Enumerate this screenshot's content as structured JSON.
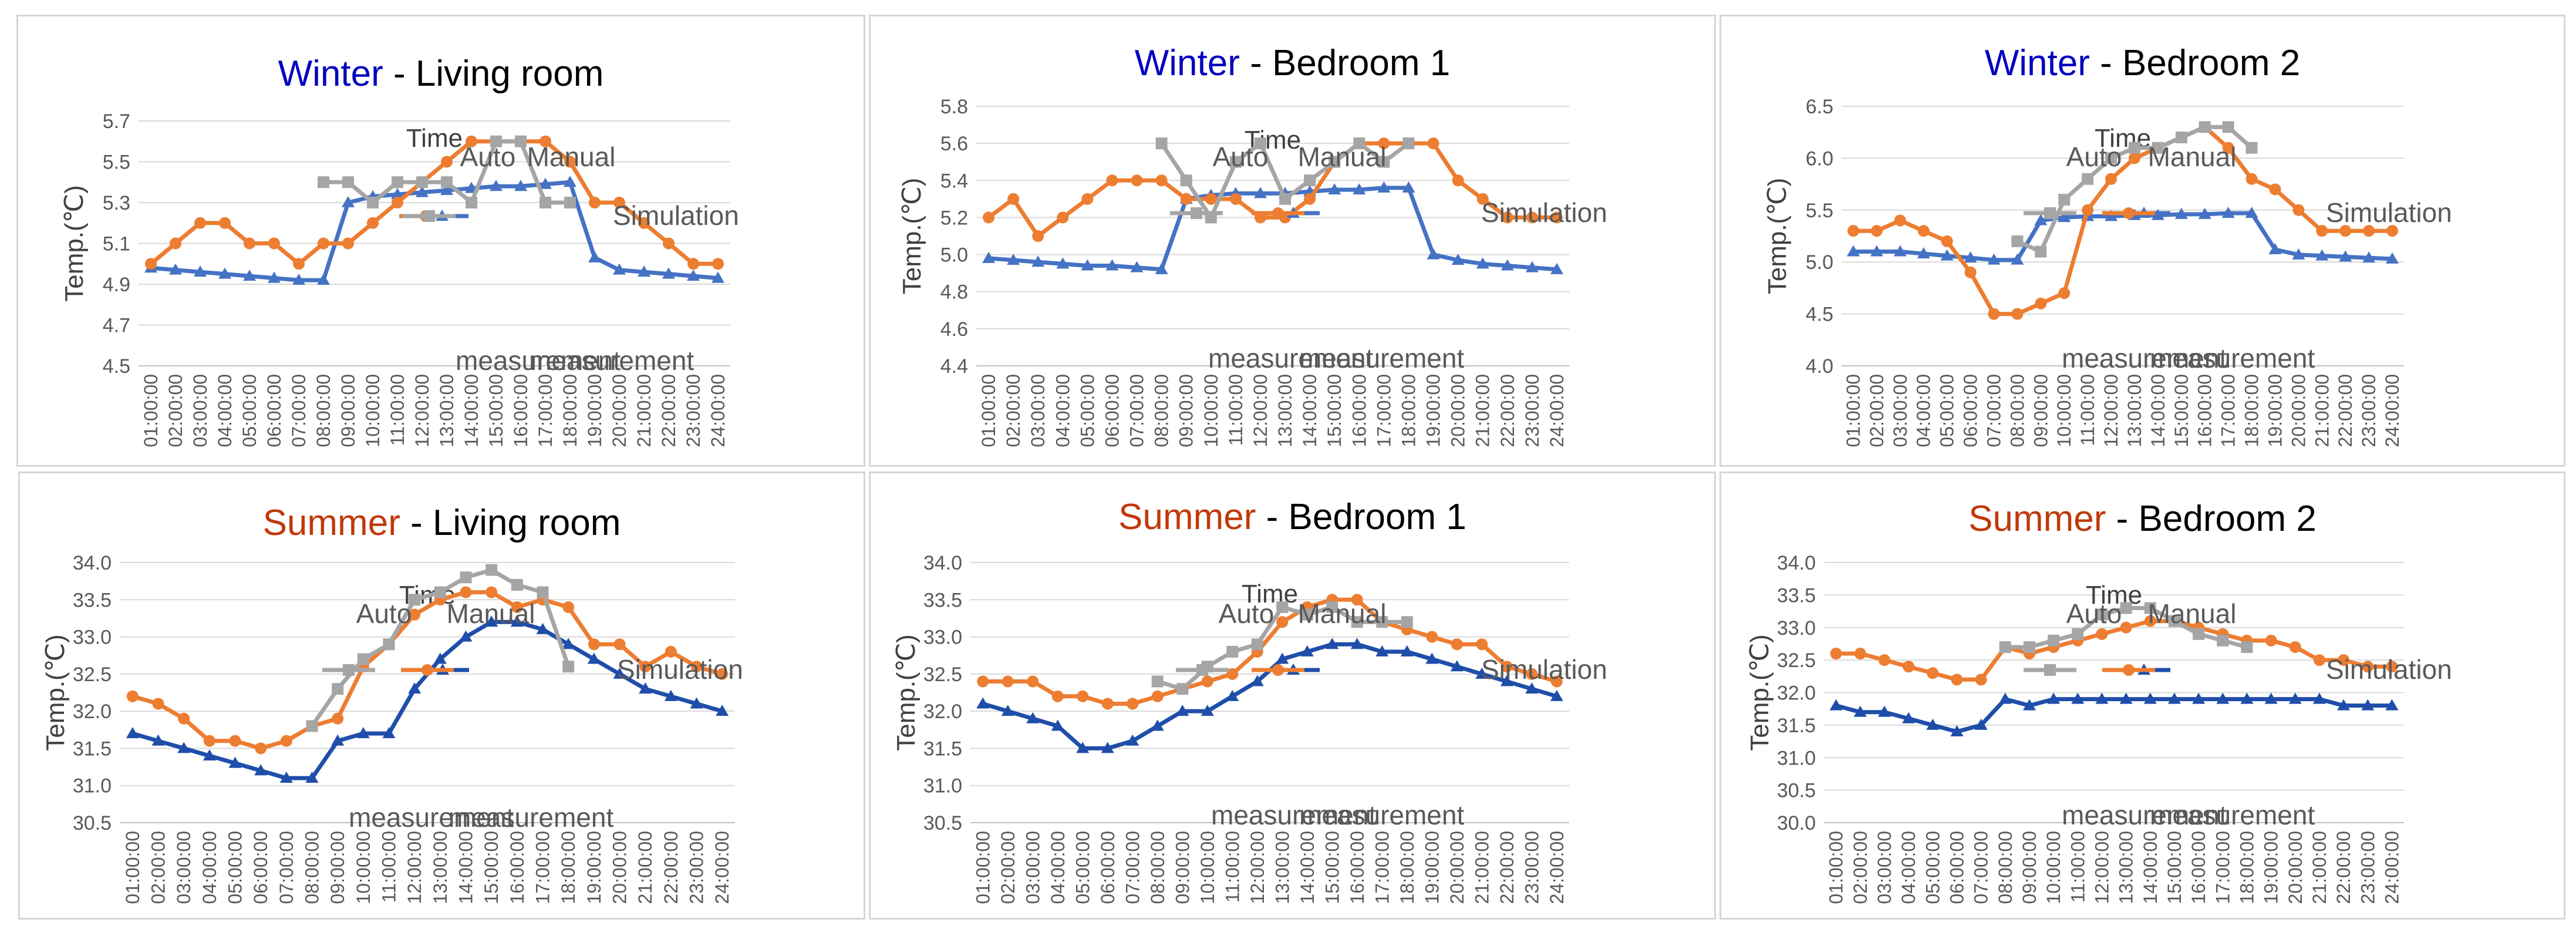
{
  "colors": {
    "simulation_light": "#4472C4",
    "simulation_dark": "#1F4EAA",
    "auto": "#ED7D31",
    "manual": "#A5A5A5",
    "winter": "#0000BF",
    "summer": "#C0390B"
  },
  "common": {
    "separator": " - ",
    "ylabel": "Temp.(℃)",
    "xlabel": "Time",
    "legend": {
      "simulation": "Simulation",
      "auto_line1": "Auto",
      "auto_line2": "measurement",
      "manual_line1": "Manual",
      "manual_line2": "measurement"
    },
    "times": [
      "01:00:00",
      "02:00:00",
      "03:00:00",
      "04:00:00",
      "05:00:00",
      "06:00:00",
      "07:00:00",
      "08:00:00",
      "09:00:00",
      "10:00:00",
      "11:00:00",
      "12:00:00",
      "13:00:00",
      "14:00:00",
      "15:00:00",
      "16:00:00",
      "17:00:00",
      "18:00:00",
      "19:00:00",
      "20:00:00",
      "21:00:00",
      "22:00:00",
      "23:00:00",
      "24:00:00"
    ]
  },
  "chart_data": [
    {
      "type": "line",
      "season": "Winter",
      "room": "Living room",
      "title": "Winter - Living room",
      "ylim": [
        4.5,
        5.7
      ],
      "yticks": [
        "4.5",
        "4.7",
        "4.9",
        "5.1",
        "5.3",
        "5.5",
        "5.7"
      ],
      "series": [
        {
          "name": "Simulation",
          "values": [
            4.98,
            4.97,
            4.96,
            4.95,
            4.94,
            4.93,
            4.92,
            4.92,
            5.3,
            5.33,
            5.34,
            5.35,
            5.36,
            5.37,
            5.38,
            5.38,
            5.39,
            5.4,
            5.03,
            4.97,
            4.96,
            4.95,
            4.94,
            4.93
          ]
        },
        {
          "name": "Auto measurement",
          "values": [
            5.0,
            5.1,
            5.2,
            5.2,
            5.1,
            5.1,
            5.0,
            5.1,
            5.1,
            5.2,
            5.3,
            5.4,
            5.5,
            5.6,
            5.6,
            5.6,
            5.6,
            5.5,
            5.3,
            5.3,
            5.2,
            5.1,
            5.0,
            5.0
          ]
        },
        {
          "name": "Manual measurement",
          "values": [
            null,
            null,
            null,
            null,
            null,
            null,
            null,
            5.4,
            5.4,
            5.3,
            5.4,
            5.4,
            5.4,
            5.3,
            5.6,
            5.6,
            5.3,
            5.3,
            null,
            null,
            null,
            null,
            null,
            null
          ]
        }
      ]
    },
    {
      "type": "line",
      "season": "Winter",
      "room": "Bedroom 1",
      "title": "Winter - Bedroom 1",
      "ylim": [
        4.4,
        5.8
      ],
      "yticks": [
        "4.4",
        "4.6",
        "4.8",
        "5.0",
        "5.2",
        "5.4",
        "5.6",
        "5.8"
      ],
      "series": [
        {
          "name": "Simulation",
          "values": [
            4.98,
            4.97,
            4.96,
            4.95,
            4.94,
            4.94,
            4.93,
            4.92,
            5.3,
            5.32,
            5.33,
            5.33,
            5.33,
            5.34,
            5.35,
            5.35,
            5.36,
            5.36,
            5.0,
            4.97,
            4.95,
            4.94,
            4.93,
            4.92
          ]
        },
        {
          "name": "Auto measurement",
          "values": [
            5.2,
            5.3,
            5.1,
            5.2,
            5.3,
            5.4,
            5.4,
            5.4,
            5.3,
            5.3,
            5.3,
            5.2,
            5.2,
            5.3,
            5.5,
            5.6,
            5.6,
            5.6,
            5.6,
            5.4,
            5.3,
            5.2,
            5.2,
            5.2
          ]
        },
        {
          "name": "Manual measurement",
          "values": [
            null,
            null,
            null,
            null,
            null,
            null,
            null,
            5.6,
            5.4,
            5.2,
            5.5,
            5.6,
            5.3,
            5.4,
            5.5,
            5.6,
            5.5,
            5.6,
            null,
            null,
            null,
            null,
            null,
            null
          ]
        }
      ]
    },
    {
      "type": "line",
      "season": "Winter",
      "room": "Bedroom 2",
      "title": "Winter - Bedroom 2",
      "ylim": [
        4.0,
        6.5
      ],
      "yticks": [
        "4.0",
        "4.5",
        "5.0",
        "5.5",
        "6.0",
        "6.5"
      ],
      "series": [
        {
          "name": "Simulation",
          "values": [
            5.1,
            5.1,
            5.1,
            5.08,
            5.06,
            5.04,
            5.02,
            5.02,
            5.4,
            5.43,
            5.44,
            5.44,
            5.45,
            5.45,
            5.46,
            5.46,
            5.47,
            5.47,
            5.12,
            5.07,
            5.06,
            5.05,
            5.04,
            5.03
          ]
        },
        {
          "name": "Auto measurement",
          "values": [
            5.3,
            5.3,
            5.4,
            5.3,
            5.2,
            4.9,
            4.5,
            4.5,
            4.6,
            4.7,
            5.5,
            5.8,
            6.0,
            6.1,
            6.2,
            6.3,
            6.1,
            5.8,
            5.7,
            5.5,
            5.3,
            5.3,
            5.3,
            5.3
          ]
        },
        {
          "name": "Manual measurement",
          "values": [
            null,
            null,
            null,
            null,
            null,
            null,
            null,
            5.2,
            5.1,
            5.6,
            5.8,
            6.0,
            6.1,
            6.1,
            6.2,
            6.3,
            6.3,
            6.1,
            null,
            null,
            null,
            null,
            null,
            null
          ]
        }
      ]
    },
    {
      "type": "line",
      "season": "Summer",
      "room": "Living room",
      "title": "Summer - Living room",
      "ylim": [
        30.5,
        34.0
      ],
      "yticks": [
        "30.5",
        "31.0",
        "31.5",
        "32.0",
        "32.5",
        "33.0",
        "33.5",
        "34.0"
      ],
      "series": [
        {
          "name": "Simulation",
          "values": [
            31.7,
            31.6,
            31.5,
            31.4,
            31.3,
            31.2,
            31.1,
            31.1,
            31.6,
            31.7,
            31.7,
            32.3,
            32.7,
            33.0,
            33.2,
            33.2,
            33.1,
            32.9,
            32.7,
            32.5,
            32.3,
            32.2,
            32.1,
            32.0
          ]
        },
        {
          "name": "Auto measurement",
          "values": [
            32.2,
            32.1,
            31.9,
            31.6,
            31.6,
            31.5,
            31.6,
            31.8,
            31.9,
            32.6,
            32.9,
            33.3,
            33.5,
            33.6,
            33.6,
            33.4,
            33.5,
            33.4,
            32.9,
            32.9,
            32.6,
            32.8,
            32.6,
            32.5
          ]
        },
        {
          "name": "Manual measurement",
          "values": [
            null,
            null,
            null,
            null,
            null,
            null,
            null,
            31.8,
            32.3,
            32.7,
            32.9,
            33.5,
            33.6,
            33.8,
            33.9,
            33.7,
            33.6,
            32.6,
            null,
            null,
            null,
            null,
            null,
            null
          ]
        }
      ]
    },
    {
      "type": "line",
      "season": "Summer",
      "room": "Bedroom 1",
      "title": "Summer - Bedroom 1",
      "ylim": [
        30.5,
        34.0
      ],
      "yticks": [
        "30.5",
        "31.0",
        "31.5",
        "32.0",
        "32.5",
        "33.0",
        "33.5",
        "34.0"
      ],
      "series": [
        {
          "name": "Simulation",
          "values": [
            32.1,
            32.0,
            31.9,
            31.8,
            31.5,
            31.5,
            31.6,
            31.8,
            32.0,
            32.0,
            32.2,
            32.4,
            32.7,
            32.8,
            32.9,
            32.9,
            32.8,
            32.8,
            32.7,
            32.6,
            32.5,
            32.4,
            32.3,
            32.2
          ]
        },
        {
          "name": "Auto measurement",
          "values": [
            32.4,
            32.4,
            32.4,
            32.2,
            32.2,
            32.1,
            32.1,
            32.2,
            32.3,
            32.4,
            32.5,
            32.8,
            33.2,
            33.4,
            33.5,
            33.5,
            33.2,
            33.1,
            33.0,
            32.9,
            32.9,
            32.6,
            32.5,
            32.4
          ]
        },
        {
          "name": "Manual measurement",
          "values": [
            null,
            null,
            null,
            null,
            null,
            null,
            null,
            32.4,
            32.3,
            32.6,
            32.8,
            32.9,
            33.4,
            33.3,
            33.4,
            33.2,
            33.2,
            33.2,
            null,
            null,
            null,
            null,
            null,
            null
          ]
        }
      ]
    },
    {
      "type": "line",
      "season": "Summer",
      "room": "Bedroom 2",
      "title": "Summer - Bedroom 2",
      "ylim": [
        30.0,
        34.0
      ],
      "yticks": [
        "30.0",
        "30.5",
        "31.0",
        "31.5",
        "32.0",
        "32.5",
        "33.0",
        "33.5",
        "34.0"
      ],
      "series": [
        {
          "name": "Simulation",
          "values": [
            31.8,
            31.7,
            31.7,
            31.6,
            31.5,
            31.4,
            31.5,
            31.9,
            31.8,
            31.9,
            31.9,
            31.9,
            31.9,
            31.9,
            31.9,
            31.9,
            31.9,
            31.9,
            31.9,
            31.9,
            31.9,
            31.8,
            31.8,
            31.8
          ]
        },
        {
          "name": "Auto measurement",
          "values": [
            32.6,
            32.6,
            32.5,
            32.4,
            32.3,
            32.2,
            32.2,
            32.7,
            32.6,
            32.7,
            32.8,
            32.9,
            33.0,
            33.1,
            33.1,
            33.0,
            32.9,
            32.8,
            32.8,
            32.7,
            32.5,
            32.5,
            32.4,
            32.4
          ]
        },
        {
          "name": "Manual measurement",
          "values": [
            null,
            null,
            null,
            null,
            null,
            null,
            null,
            32.7,
            32.7,
            32.8,
            32.9,
            33.2,
            33.3,
            33.3,
            33.1,
            32.9,
            32.8,
            32.7,
            null,
            null,
            null,
            null,
            null,
            null
          ]
        }
      ]
    }
  ]
}
